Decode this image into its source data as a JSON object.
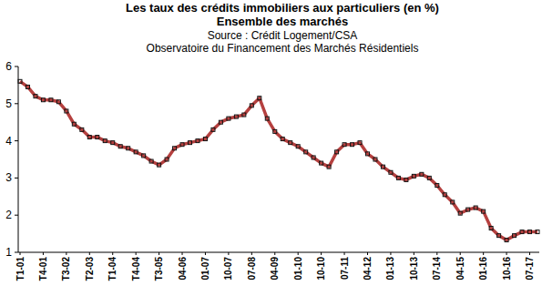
{
  "chart_data": {
    "type": "line",
    "title": "Les taux des crédits immobiliers aux particuliers (en %)",
    "subtitle": "Ensemble des marchés",
    "annotations": [
      "Source : Crédit Logement/CSA",
      "Observatoire du Financement des Marchés Résidentiels"
    ],
    "categories": [
      "T1-01",
      null,
      null,
      "T4-01",
      null,
      null,
      "T3-02",
      null,
      null,
      "T2-03",
      null,
      null,
      "T1-04",
      null,
      null,
      "T4-04",
      null,
      null,
      "T3-05",
      null,
      null,
      "04-06",
      null,
      null,
      "01-07",
      null,
      null,
      "10-07",
      null,
      null,
      "07-08",
      null,
      null,
      "04-09",
      null,
      null,
      "01-10",
      null,
      null,
      "10-10",
      null,
      null,
      "07-11",
      null,
      null,
      "04-12",
      null,
      null,
      "01-13",
      null,
      null,
      "10-13",
      null,
      null,
      "07-14",
      null,
      null,
      "04-15",
      null,
      null,
      "01-16",
      null,
      null,
      "10-16",
      null,
      null,
      "07-17",
      null
    ],
    "series": [
      {
        "name": "Ensemble des marchés",
        "color": "#b5403f",
        "marker": "square",
        "values": [
          5.6,
          5.45,
          5.2,
          5.1,
          5.1,
          5.05,
          4.8,
          4.45,
          4.3,
          4.1,
          4.1,
          4.0,
          3.95,
          3.85,
          3.8,
          3.7,
          3.6,
          3.45,
          3.35,
          3.5,
          3.8,
          3.9,
          3.95,
          4.0,
          4.05,
          4.3,
          4.5,
          4.6,
          4.65,
          4.7,
          4.95,
          5.15,
          4.6,
          4.25,
          4.05,
          3.95,
          3.85,
          3.7,
          3.55,
          3.4,
          3.3,
          3.7,
          3.9,
          3.9,
          3.95,
          3.65,
          3.5,
          3.3,
          3.15,
          3.0,
          2.95,
          3.05,
          3.1,
          3.0,
          2.8,
          2.55,
          2.35,
          2.05,
          2.15,
          2.2,
          2.1,
          1.65,
          1.45,
          1.33,
          1.45,
          1.55,
          1.55,
          1.55
        ]
      }
    ],
    "ylim": [
      1,
      6
    ],
    "yticks": [
      1,
      2,
      3,
      4,
      5,
      6
    ],
    "grid": false
  }
}
